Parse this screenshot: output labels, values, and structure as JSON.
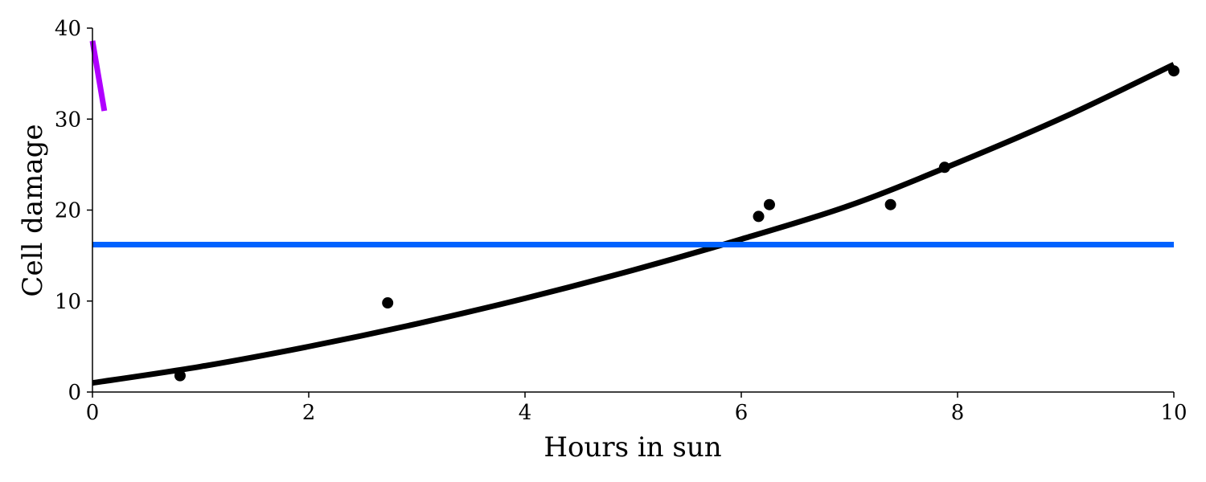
{
  "chart_data": {
    "type": "scatter",
    "title": "",
    "xlabel": "Hours in sun",
    "ylabel": "Cell damage",
    "xlim": [
      0,
      10
    ],
    "ylim": [
      0,
      40
    ],
    "x_ticks": [
      0,
      2,
      4,
      6,
      8,
      10
    ],
    "y_ticks": [
      0,
      10,
      20,
      30,
      40
    ],
    "grid": false,
    "spines": [
      "left",
      "bottom"
    ],
    "points": {
      "x": [
        0.81,
        2.73,
        6.16,
        6.26,
        7.38,
        7.88,
        10.0
      ],
      "y": [
        1.8,
        9.8,
        19.3,
        20.6,
        20.6,
        24.7,
        35.3
      ],
      "color": "#000000"
    },
    "curves": [
      {
        "kind": "fitted_curve",
        "color": "#000000",
        "x": [
          0,
          1,
          2,
          3,
          4,
          5,
          6,
          7,
          8,
          9,
          10
        ],
        "y": [
          1.0,
          2.8,
          5.0,
          7.5,
          10.3,
          13.4,
          16.8,
          20.5,
          25.2,
          30.3,
          36.0
        ]
      },
      {
        "kind": "horizontal_line",
        "color": "#0062ff",
        "x": [
          0,
          10
        ],
        "y": [
          16.2,
          16.2
        ]
      },
      {
        "kind": "short_segment",
        "color": "#b000ff",
        "x": [
          0.0,
          0.11
        ],
        "y": [
          38.6,
          30.9
        ]
      }
    ]
  }
}
